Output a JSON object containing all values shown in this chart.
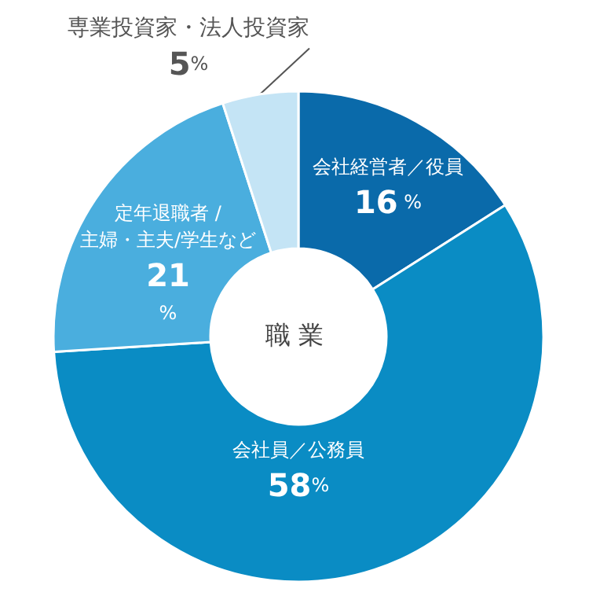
{
  "chart_data": {
    "type": "donut",
    "title": "職 業",
    "categories": [
      "会社経営者／役員",
      "会社員／公務員",
      "定年退職者 /\n主婦・主夫/学生など",
      "専業投資家・法人投資家"
    ],
    "values": [
      16,
      58,
      21,
      5
    ],
    "value_labels": [
      "16 %",
      "58%",
      "21\n%",
      "5%"
    ],
    "colors": [
      "#0a6aaa",
      "#0a8cc4",
      "#4aaede",
      "#c4e4f5"
    ],
    "legend": false
  }
}
